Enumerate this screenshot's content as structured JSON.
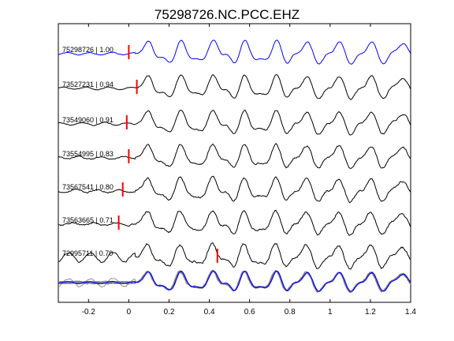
{
  "chart_data": {
    "type": "line",
    "title": "75298726.NC.PCC.EHZ",
    "xlabel": "",
    "ylabel": "",
    "xlim": [
      -0.35,
      1.4
    ],
    "x_ticks": [
      -0.2,
      0,
      0.2,
      0.4,
      0.6,
      0.8,
      1,
      1.2,
      1.4
    ],
    "x_tick_labels": [
      "-0.2",
      "0",
      "0.2",
      "0.4",
      "0.6",
      "0.8",
      "1",
      "1.2",
      "1.4"
    ],
    "y_ticks": [],
    "grid": false,
    "legend": "none",
    "colors": {
      "reference": "#0000ff",
      "trace": "#000000",
      "overlay": "#7a7a7a",
      "pick": "#ff0000",
      "axes": "#000000"
    },
    "traces": [
      {
        "label": "75298726 | 1.00",
        "event_id": "75298726",
        "correlation": 1.0,
        "pick_time": 0.0,
        "reference": true
      },
      {
        "label": "73527231 | 0.94",
        "event_id": "73527231",
        "correlation": 0.94,
        "pick_time": 0.04,
        "reference": false
      },
      {
        "label": "73549060 | 0.91",
        "event_id": "73549060",
        "correlation": 0.91,
        "pick_time": -0.01,
        "reference": false
      },
      {
        "label": "73554995 | 0.83",
        "event_id": "73554995",
        "correlation": 0.83,
        "pick_time": 0.0,
        "reference": false
      },
      {
        "label": "73567541 | 0.80",
        "event_id": "73567541",
        "correlation": 0.8,
        "pick_time": -0.03,
        "reference": false
      },
      {
        "label": "73563665 | 0.71",
        "event_id": "73563665",
        "correlation": 0.71,
        "pick_time": -0.05,
        "reference": false
      },
      {
        "label": "72995711 | 0.70",
        "event_id": "72995711",
        "correlation": 0.7,
        "pick_time": 0.44,
        "reference": false
      }
    ],
    "waveform_peaks_s": [
      0.1,
      0.19,
      0.27,
      0.34,
      0.43,
      0.52,
      0.58,
      0.66,
      0.74,
      0.8,
      0.88,
      0.96,
      1.04,
      1.12,
      1.2,
      1.28,
      1.35
    ]
  }
}
